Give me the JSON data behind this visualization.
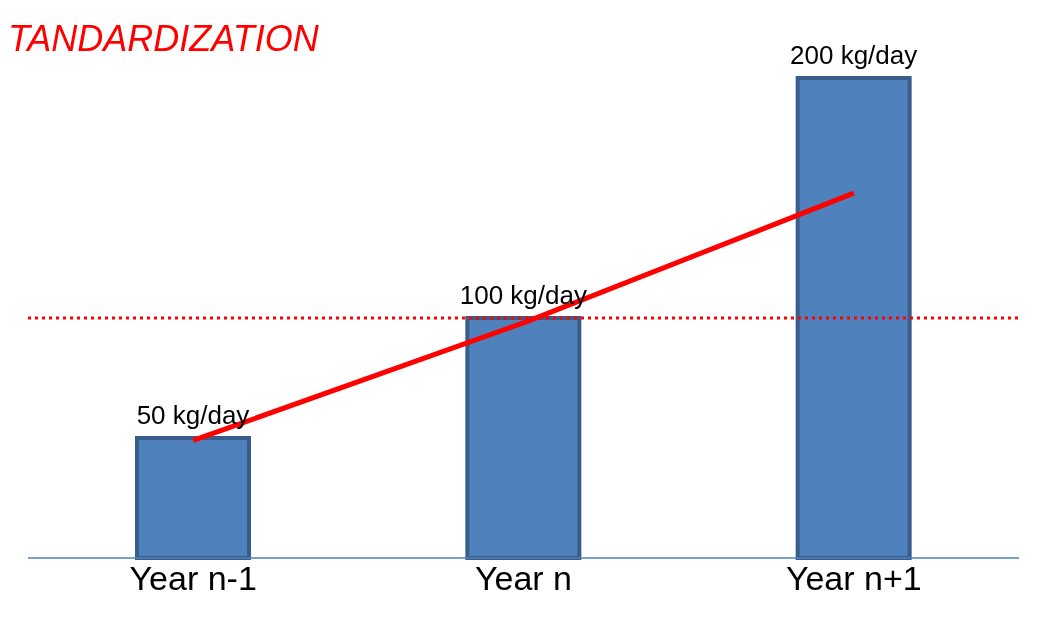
{
  "chart_data": {
    "type": "bar",
    "title": "TANDARDIZATION",
    "categories": [
      "Year n-1",
      "Year n",
      "Year n+1"
    ],
    "series": [
      {
        "color": "#4f81bd",
        "values": [
          50,
          100,
          200
        ],
        "value_labels": [
          "50 kg/day",
          "100 kg/day",
          "200 kg/day"
        ]
      },
      {
        "type": "line",
        "color": "#ff0000",
        "values": [
          49,
          98,
          152
        ],
        "marker": "none"
      }
    ],
    "ref_lines": [
      {
        "axis": "y",
        "value": 100,
        "color": "#ff0000",
        "line_style": "dotted"
      }
    ],
    "grid": false,
    "legend": false
  }
}
